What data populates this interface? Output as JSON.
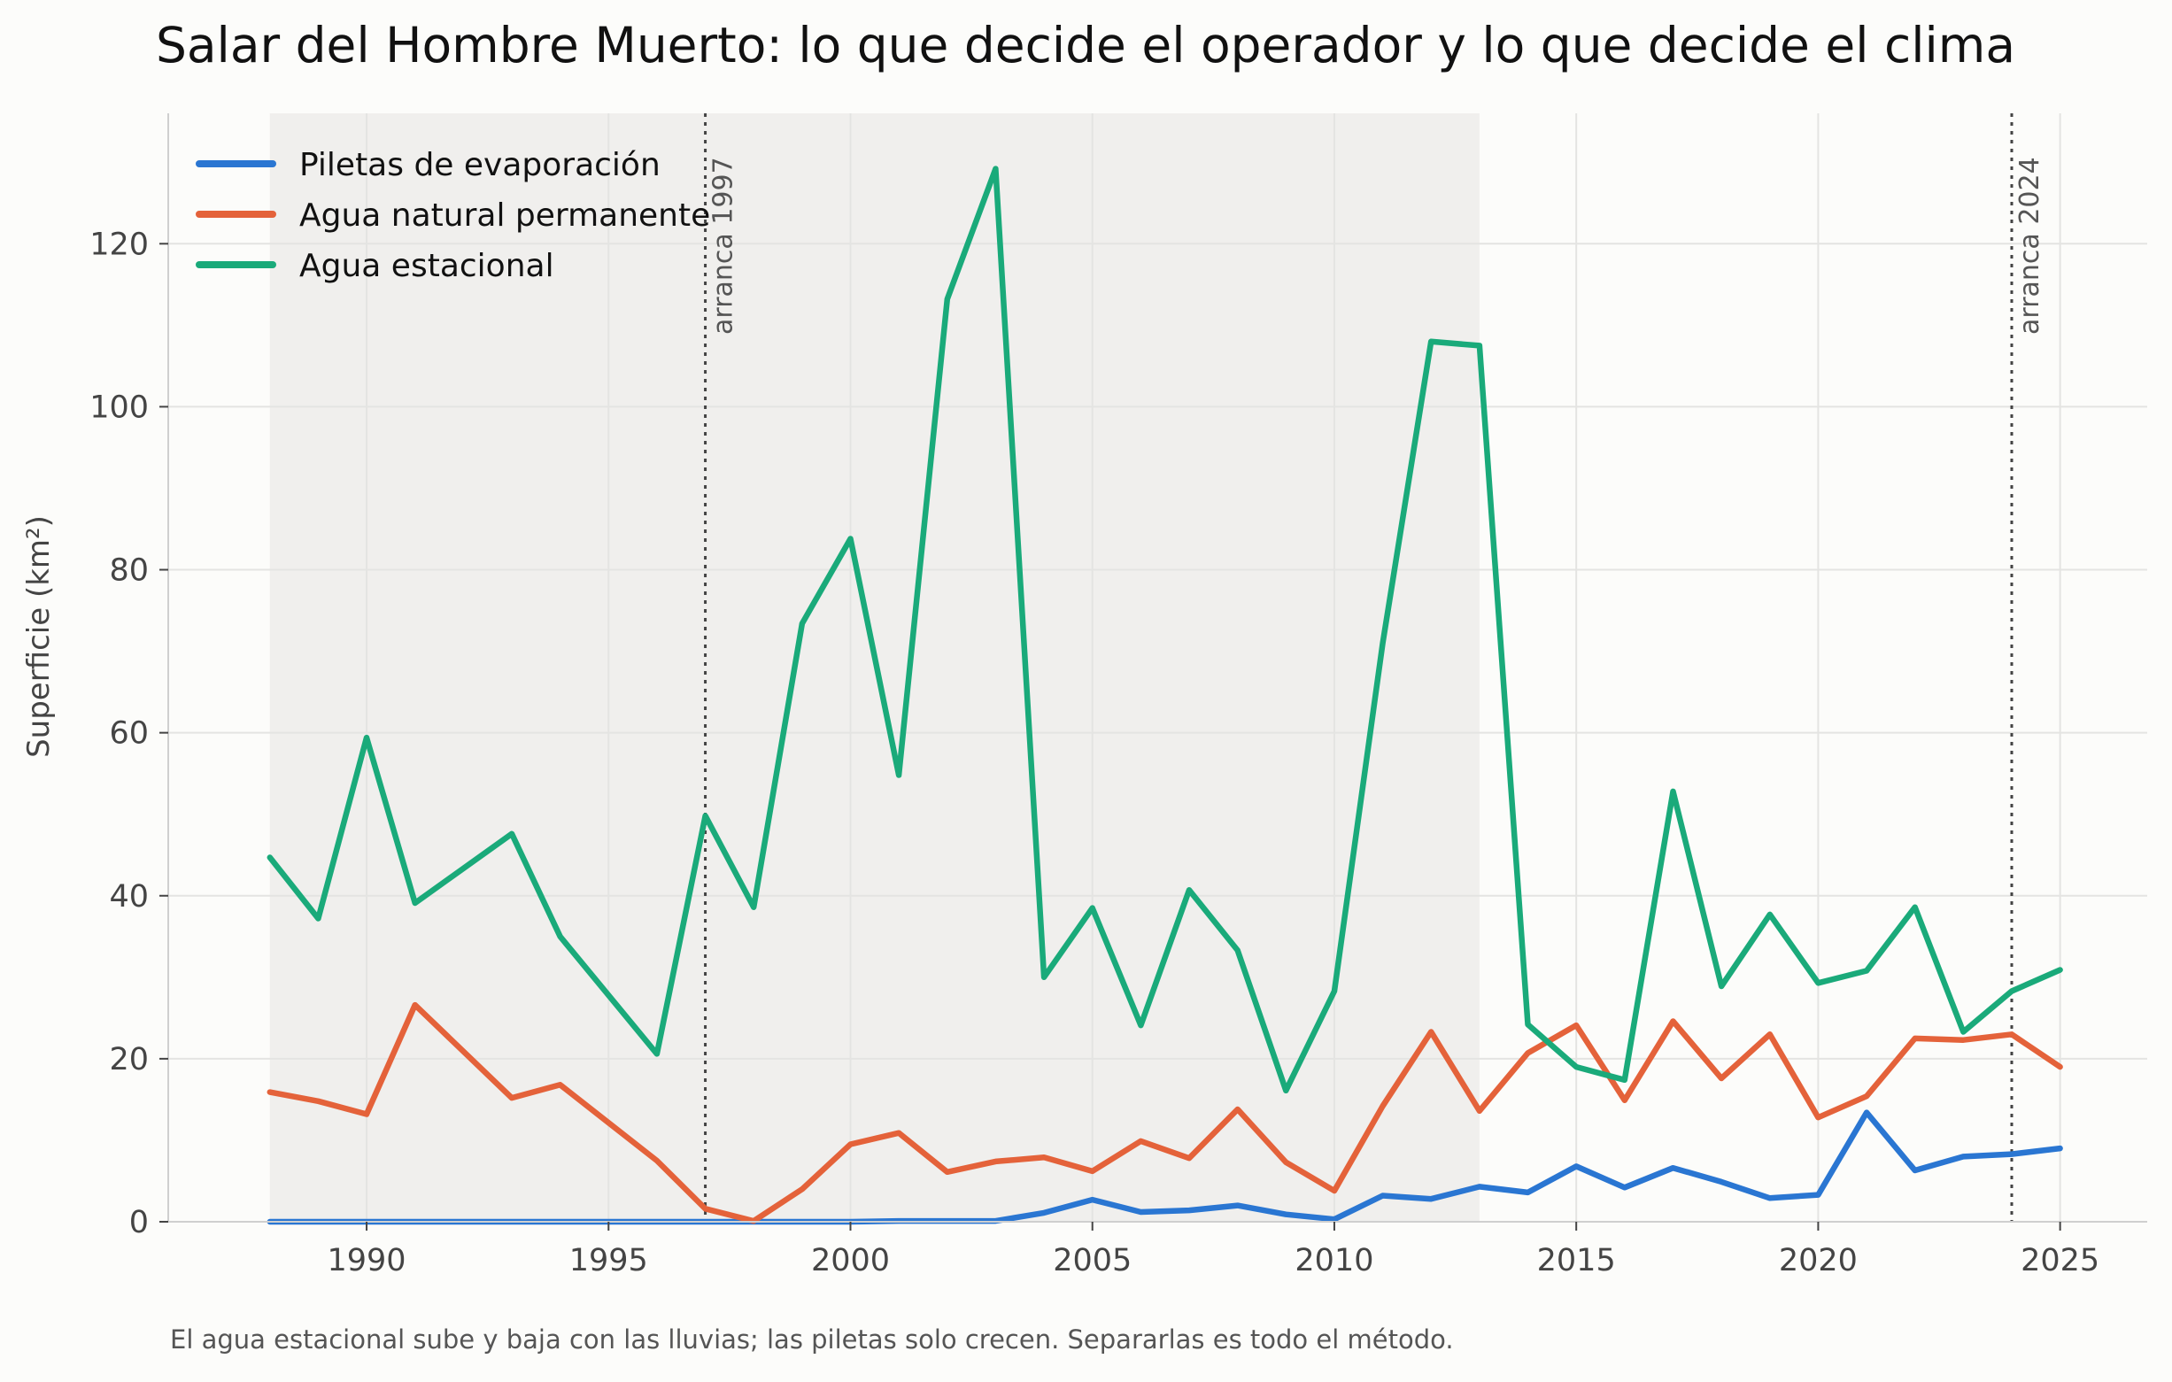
{
  "chart_data": {
    "type": "line",
    "title": "Salar del Hombre Muerto: lo que decide el operador y lo que decide el clima",
    "xlabel": "",
    "ylabel": "Superficie (km²)",
    "caption": "El agua estacional sube y baja con las lluvias; las piletas solo crecen. Separarlas es todo el método.",
    "xlim": [
      1985.9,
      2026.8
    ],
    "ylim": [
      0,
      136
    ],
    "xticks": [
      1990,
      1995,
      2000,
      2005,
      2010,
      2015,
      2020,
      2025
    ],
    "yticks": [
      0,
      20,
      40,
      60,
      80,
      100,
      120
    ],
    "grid": true,
    "legend_position": "top-left",
    "shaded_span": {
      "x_start": 1988,
      "x_end": 2013,
      "color": "#f0efed"
    },
    "vlines": [
      {
        "x": 1997,
        "label": "arranca 1997"
      },
      {
        "x": 2024,
        "label": "arranca 2024"
      }
    ],
    "series": [
      {
        "name": "Piletas de evaporación",
        "color": "#2a76d2",
        "x": [
          1988,
          1989,
          1990,
          1991,
          1992,
          1993,
          1994,
          1995,
          1996,
          1997,
          1998,
          1999,
          2000,
          2001,
          2002,
          2003,
          2004,
          2005,
          2006,
          2007,
          2008,
          2009,
          2010,
          2011,
          2012,
          2013,
          2014,
          2015,
          2016,
          2017,
          2018,
          2019,
          2020,
          2021,
          2022,
          2023,
          2024,
          2025
        ],
        "values": [
          0,
          0,
          0,
          0,
          0,
          0,
          0,
          0,
          0,
          0,
          0,
          0,
          0,
          0.1,
          0.1,
          0.1,
          1.1,
          2.7,
          1.2,
          1.4,
          2.0,
          0.9,
          0.3,
          3.2,
          2.8,
          4.3,
          3.6,
          6.8,
          4.2,
          6.6,
          4.9,
          2.9,
          3.3,
          13.4,
          6.3,
          8.0,
          8.3,
          9.0
        ]
      },
      {
        "name": "Agua natural permanente",
        "color": "#e4623a",
        "x": [
          1988,
          1989,
          1990,
          1991,
          1993,
          1994,
          1996,
          1997,
          1998,
          1999,
          2000,
          2001,
          2002,
          2003,
          2004,
          2005,
          2006,
          2007,
          2008,
          2009,
          2010,
          2011,
          2012,
          2013,
          2014,
          2015,
          2016,
          2017,
          2018,
          2019,
          2020,
          2021,
          2022,
          2023,
          2024,
          2025
        ],
        "values": [
          15.9,
          14.8,
          13.2,
          26.6,
          15.2,
          16.8,
          7.5,
          1.6,
          0.1,
          4.0,
          9.5,
          10.9,
          6.1,
          7.4,
          7.9,
          6.2,
          9.9,
          7.8,
          13.8,
          7.3,
          3.8,
          14.2,
          23.3,
          13.6,
          20.7,
          24.1,
          14.9,
          24.6,
          17.6,
          23.0,
          12.8,
          15.4,
          22.5,
          22.3,
          23.0,
          19.0
        ]
      },
      {
        "name": "Agua estacional",
        "color": "#1aaa7a",
        "x": [
          1988,
          1989,
          1990,
          1991,
          1993,
          1994,
          1996,
          1997,
          1998,
          1999,
          2000,
          2001,
          2002,
          2003,
          2004,
          2005,
          2006,
          2007,
          2008,
          2009,
          2010,
          2011,
          2012,
          2013,
          2014,
          2015,
          2016,
          2017,
          2018,
          2019,
          2020,
          2021,
          2022,
          2023,
          2024,
          2025
        ],
        "values": [
          44.7,
          37.2,
          59.4,
          39.1,
          47.6,
          35.0,
          20.6,
          49.8,
          38.6,
          73.4,
          83.8,
          54.8,
          113.2,
          129.2,
          30.0,
          38.5,
          24.1,
          40.7,
          33.3,
          16.1,
          28.3,
          71.0,
          108.0,
          107.5,
          24.2,
          19.0,
          17.4,
          52.8,
          28.9,
          37.7,
          29.3,
          30.8,
          38.6,
          23.3,
          28.3,
          30.9
        ]
      }
    ]
  }
}
